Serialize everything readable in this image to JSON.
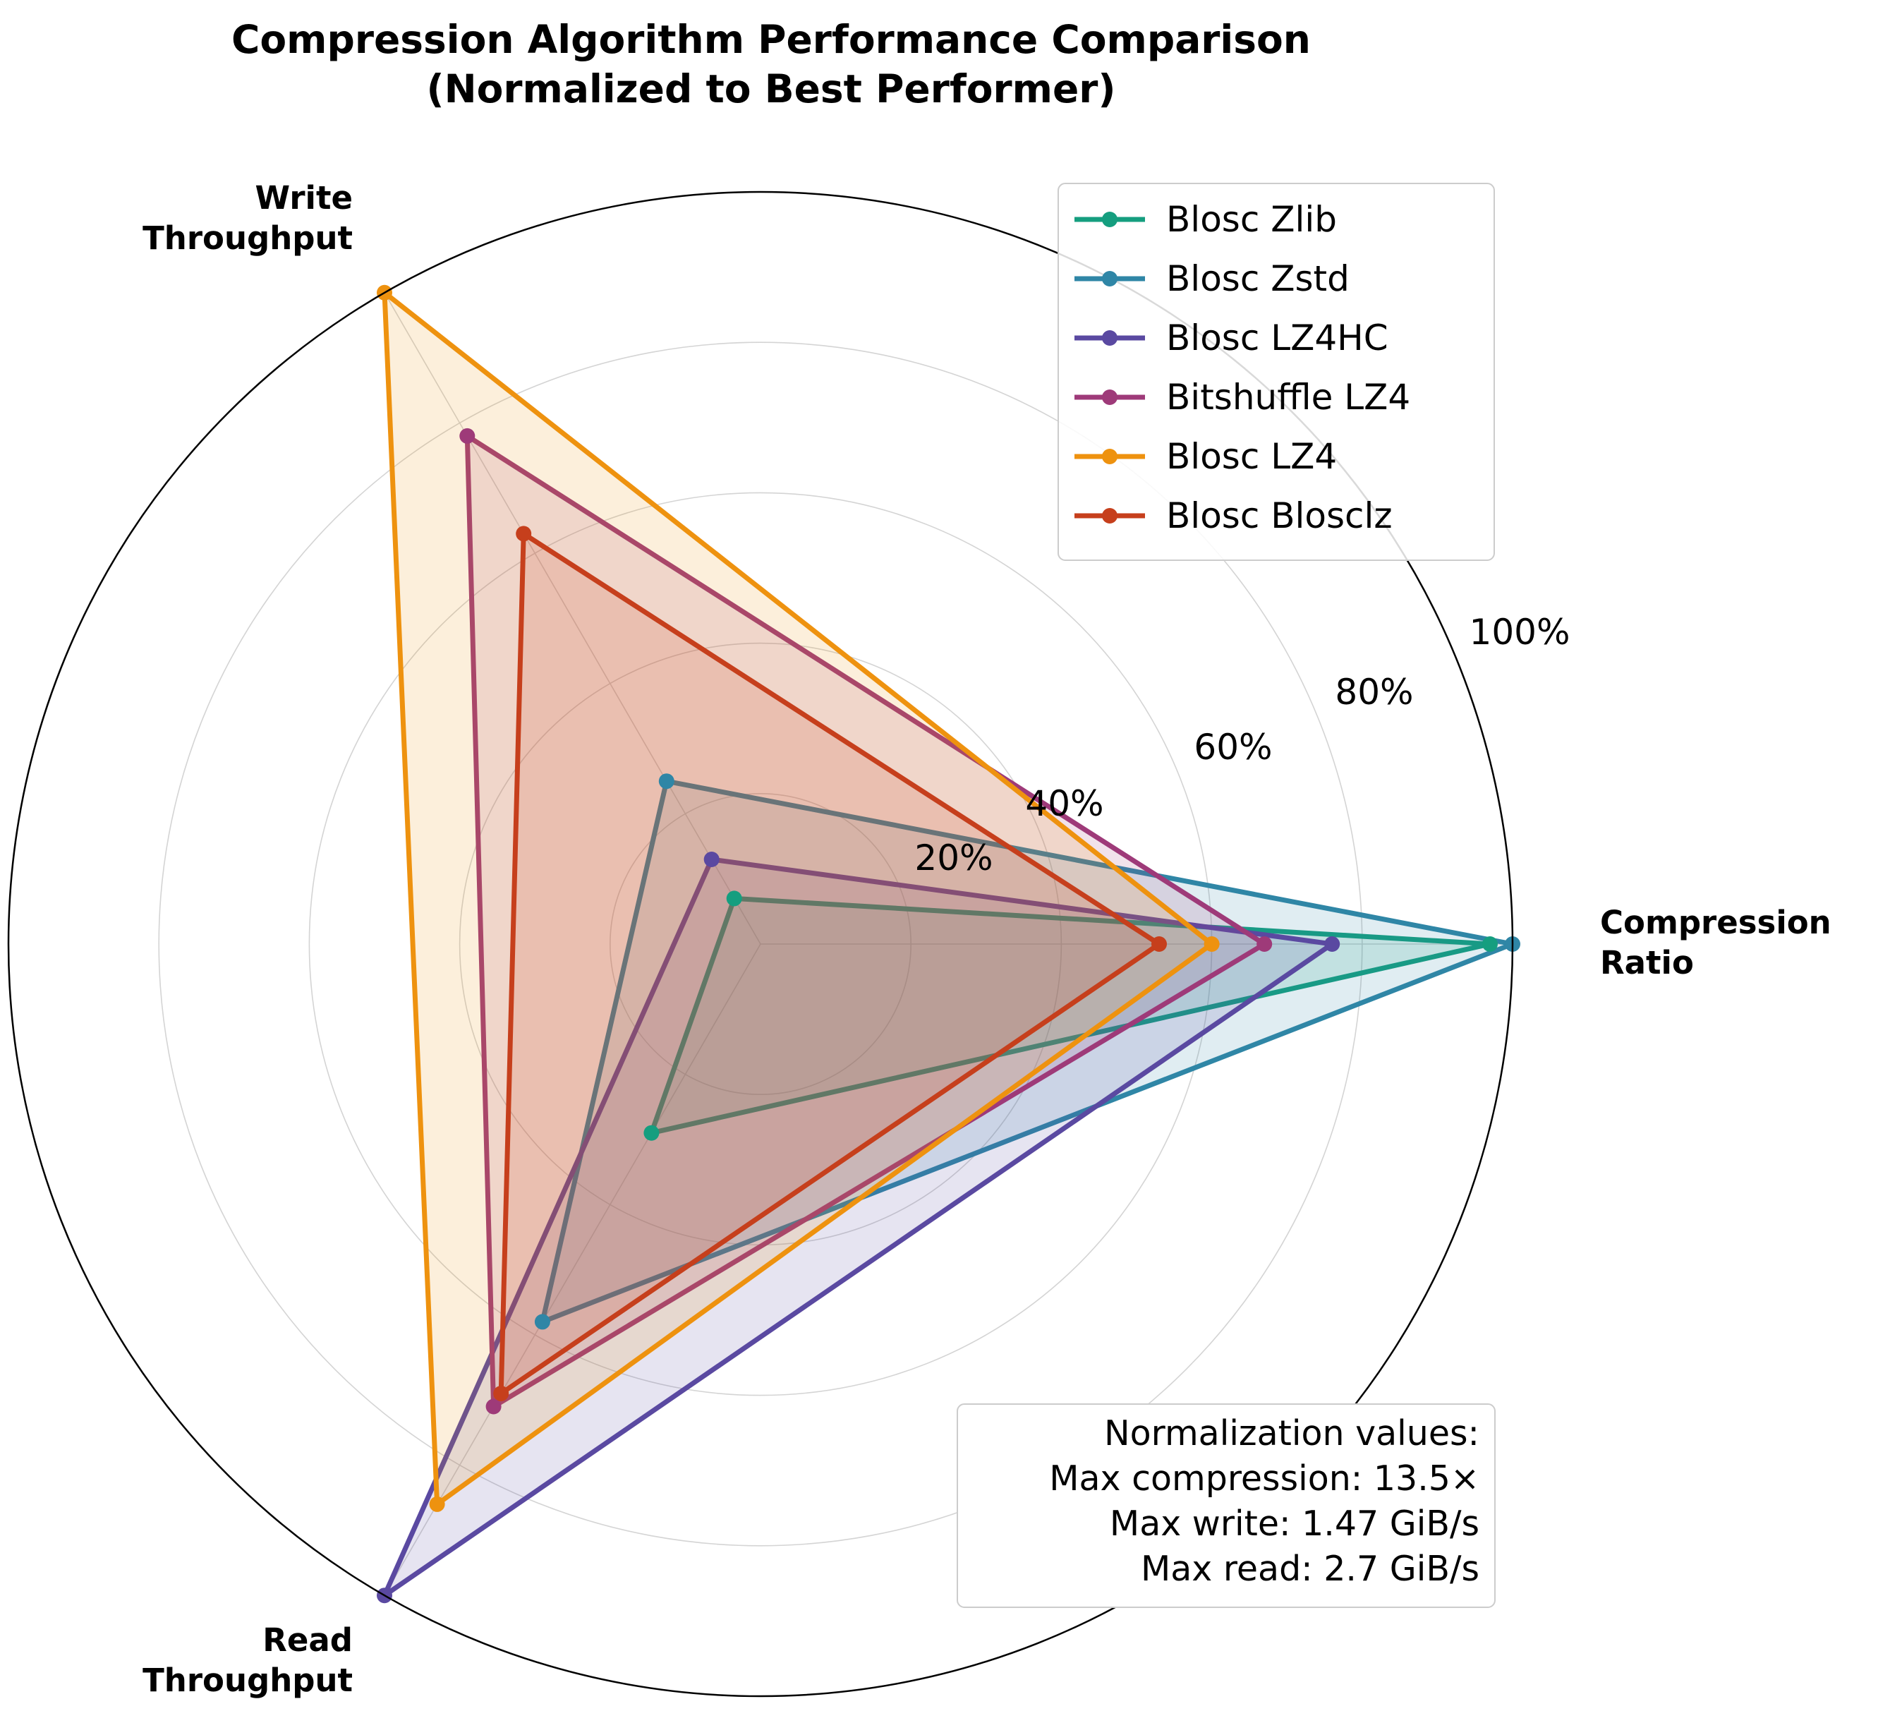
{
  "chart_data": {
    "type": "radar",
    "title": [
      "Compression Algorithm Performance Comparison",
      "(Normalized to Best Performer)"
    ],
    "axes": [
      {
        "label": [
          "Compression",
          "Ratio"
        ]
      },
      {
        "label": [
          "Write",
          "Throughput"
        ]
      },
      {
        "label": [
          "Read",
          "Throughput"
        ]
      }
    ],
    "rlim": [
      0,
      1
    ],
    "rticks": [
      0.2,
      0.4,
      0.6,
      0.8,
      1.0
    ],
    "rtick_labels": [
      "20%",
      "40%",
      "60%",
      "80%",
      "100%"
    ],
    "grid": true,
    "legend_position": "top-right",
    "series": [
      {
        "name": "Blosc Zlib",
        "color": "#159e7f",
        "values": [
          0.97,
          0.07,
          0.29
        ]
      },
      {
        "name": "Blosc Zstd",
        "color": "#2f86a6",
        "values": [
          1.0,
          0.25,
          0.58
        ]
      },
      {
        "name": "Blosc LZ4HC",
        "color": "#5a49a1",
        "values": [
          0.76,
          0.13,
          1.0
        ]
      },
      {
        "name": "Bitshuffle LZ4",
        "color": "#9e3a79",
        "values": [
          0.67,
          0.78,
          0.71
        ]
      },
      {
        "name": "Blosc LZ4",
        "color": "#ee920f",
        "values": [
          0.6,
          1.0,
          0.86
        ]
      },
      {
        "name": "Blosc Blosclz",
        "color": "#c63f1c",
        "values": [
          0.53,
          0.63,
          0.69
        ]
      }
    ],
    "note": [
      "Normalization values:",
      "Max compression: 13.5×",
      "Max write: 1.47 GiB/s",
      "Max read: 2.7 GiB/s"
    ]
  }
}
